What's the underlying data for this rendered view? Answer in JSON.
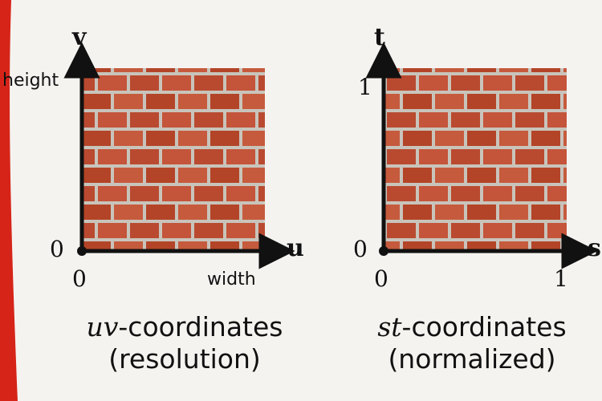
{
  "left_diagram": {
    "axis_vertical": "v",
    "axis_horizontal": "u",
    "label_height": "height",
    "label_width": "width",
    "origin_y": "0",
    "origin_x": "0",
    "caption_italic": "uv",
    "caption_rest": "-coordinates",
    "caption_line2": "(resolution)"
  },
  "right_diagram": {
    "axis_vertical": "t",
    "axis_horizontal": "s",
    "label_top": "1",
    "label_right": "1",
    "origin_y": "0",
    "origin_x": "0",
    "caption_italic": "st",
    "caption_rest": "-coordinates",
    "caption_line2": "(normalized)"
  },
  "colors": {
    "brick": "#b94a30",
    "mortar": "#c9c4bb",
    "accent_red": "#d62418"
  }
}
